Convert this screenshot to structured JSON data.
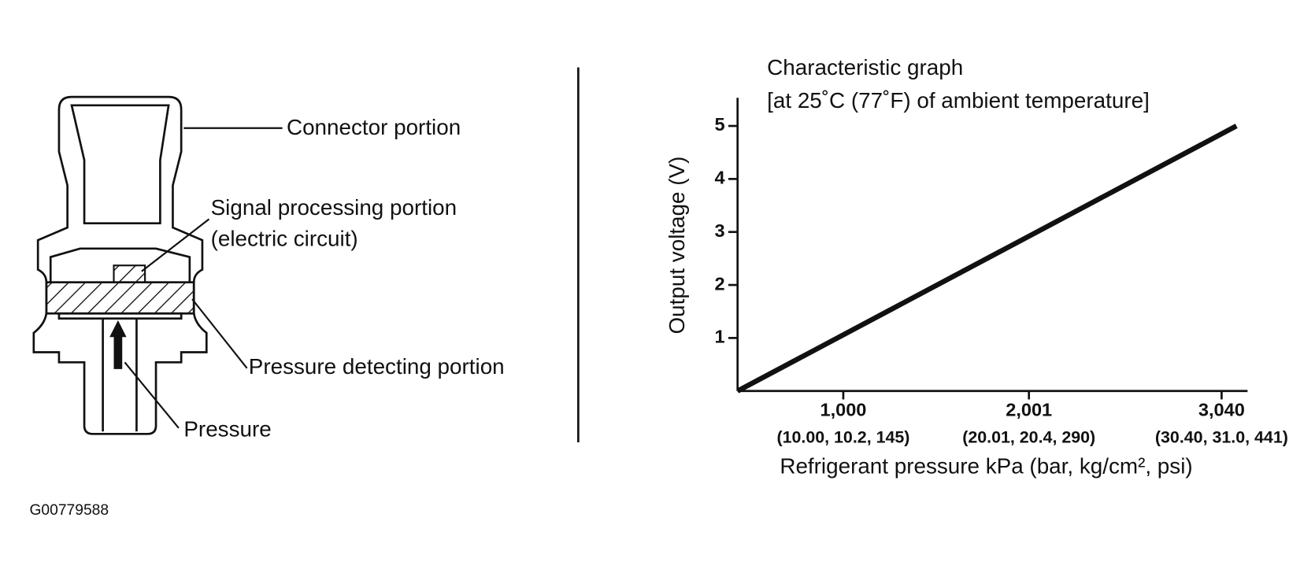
{
  "diagram": {
    "labels": {
      "connector": "Connector portion",
      "signal": "Signal processing portion",
      "signal_note": "(electric circuit)",
      "detecting": "Pressure detecting portion",
      "pressure": "Pressure"
    }
  },
  "figure_id": "G00779588",
  "chart_data": {
    "type": "line",
    "title": "Characteristic graph",
    "subtitle": "[at 25˚C (77˚F) of ambient temperature]",
    "ylabel": "Output voltage (V)",
    "xlabel": "Refrigerant pressure kPa (bar, kg/cm², psi)",
    "xlim": [
      430,
      3180
    ],
    "ylim": [
      0,
      5.5
    ],
    "xticks": [
      {
        "value": 1000,
        "label": "1,000"
      },
      {
        "value": 2001,
        "label": "2,001"
      },
      {
        "value": 3040,
        "label": "3,040"
      }
    ],
    "xtick_sublabels": [
      "(10.00, 10.2, 145)",
      "(20.01, 20.4, 290)",
      "(30.40, 31.0, 441)"
    ],
    "yticks": [
      1,
      2,
      3,
      4,
      5
    ],
    "series": [
      {
        "color": "#111111",
        "x": [
          430,
          3120
        ],
        "values": [
          0,
          5
        ]
      }
    ]
  }
}
